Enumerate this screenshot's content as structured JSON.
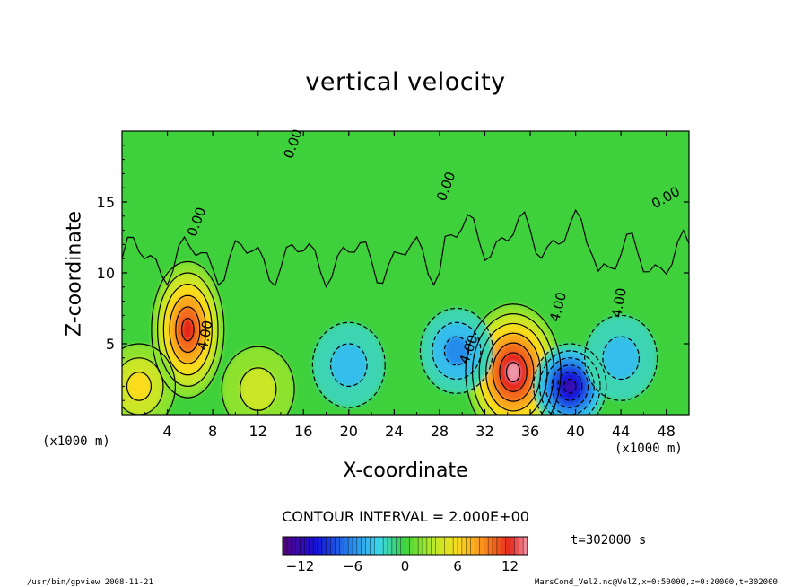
{
  "page": {
    "footer_left": "/usr/bin/gpview  2008-11-21",
    "footer_right": "MarsCond_VelZ.nc@VelZ,x=0:50000,z=0:20000,t=302000"
  },
  "chart_data": {
    "type": "heatmap",
    "title": "vertical velocity",
    "xlabel": "X-coordinate",
    "ylabel": "Z-coordinate",
    "x_unit": "(x1000 m)",
    "y_unit": "(x1000 m)",
    "xlim": [
      0,
      50
    ],
    "ylim": [
      0,
      20
    ],
    "x_ticks": [
      4,
      8,
      12,
      16,
      20,
      24,
      28,
      32,
      36,
      40,
      44,
      48
    ],
    "y_ticks": [
      5,
      10,
      15
    ],
    "contour_interval_text": "CONTOUR INTERVAL = 2.000E+00",
    "contour_labels": [
      "0.00",
      "0.00",
      "0.00",
      "0.00",
      "4.00",
      "4.00",
      "4.00",
      "4.00"
    ],
    "time_label": "t=302000 s",
    "colorbar": {
      "min": -14,
      "max": 14,
      "ticks": [
        -12,
        -6,
        0,
        6,
        12
      ]
    },
    "features": [
      {
        "kind": "updraft",
        "x": 5.8,
        "z": 6.0,
        "peak": 12
      },
      {
        "kind": "updraft",
        "x": 34.5,
        "z": 3.0,
        "peak": 14
      },
      {
        "kind": "updraft",
        "x": 1.5,
        "z": 2.0,
        "peak": 6
      },
      {
        "kind": "updraft",
        "x": 12,
        "z": 1.8,
        "peak": 4
      },
      {
        "kind": "downdraft",
        "x": 39.5,
        "z": 2.0,
        "peak": -12
      },
      {
        "kind": "downdraft",
        "x": 29.5,
        "z": 4.5,
        "peak": -6
      },
      {
        "kind": "downdraft",
        "x": 20,
        "z": 3.5,
        "peak": -4
      },
      {
        "kind": "downdraft",
        "x": 44,
        "z": 4.0,
        "peak": -4
      }
    ]
  }
}
